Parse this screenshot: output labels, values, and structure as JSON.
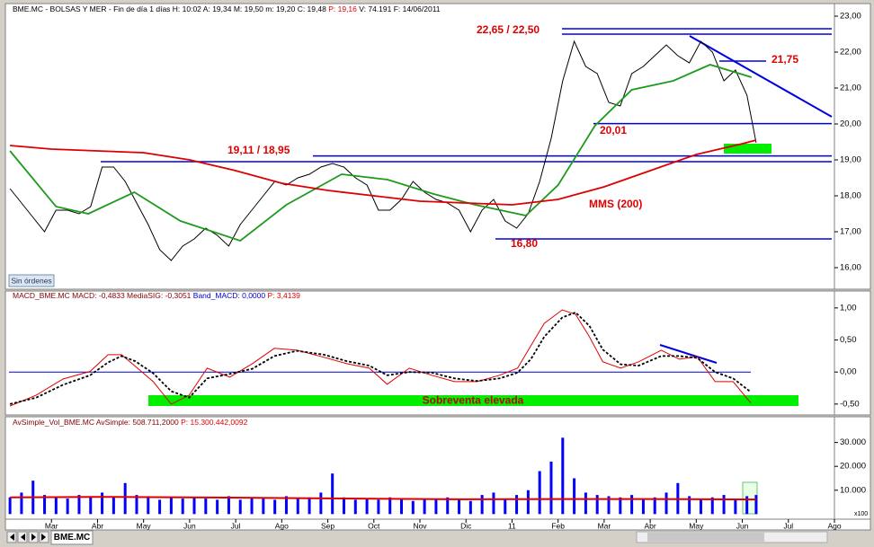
{
  "header": {
    "info": "BME.MC - BOLSAS Y MER - Fin de día 1 días  H: 10:02  A: 19,34  M: 19,50  m: 19,20  C: 19,48",
    "price_p": "P: 19,16",
    "volume_date": "V: 74.191  F: 14/06/2011"
  },
  "button": "Sin órdenes",
  "tab": "BME.MC",
  "chart_data": [
    {
      "type": "line",
      "xlim": [
        0,
        18
      ],
      "ylim": [
        15.4,
        23.1
      ],
      "yticks": [
        {
          "value": 16,
          "label": "16,00"
        },
        {
          "value": 17,
          "label": "17,00"
        },
        {
          "value": 18,
          "label": "18,00"
        },
        {
          "value": 19,
          "label": "19,00"
        },
        {
          "value": 20,
          "label": "20,00"
        },
        {
          "value": 21,
          "label": "21,00"
        },
        {
          "value": 22,
          "label": "22,00"
        },
        {
          "value": 23,
          "label": "23,00"
        }
      ],
      "series": [
        {
          "color": "#000000",
          "x": [
            0.1,
            0.35,
            0.6,
            0.85,
            1.1,
            1.35,
            1.6,
            1.85,
            2.1,
            2.35,
            2.6,
            2.85,
            3.1,
            3.35,
            3.6,
            3.85,
            4.1,
            4.35,
            4.6,
            4.85,
            5.1,
            5.35,
            5.6,
            5.85,
            6.1,
            6.35,
            6.6,
            6.85,
            7.1,
            7.35,
            7.6,
            7.85,
            8.1,
            8.35,
            8.6,
            8.85,
            9.1,
            9.35,
            9.6,
            9.85,
            10.1,
            10.35,
            10.6,
            10.85,
            11.1,
            11.35,
            11.6,
            11.85,
            12.1,
            12.35,
            12.6,
            12.85,
            13.1,
            13.35,
            13.6,
            13.85,
            14.1,
            14.35,
            14.6,
            14.85,
            15.1,
            15.35,
            15.6,
            15.85,
            16.1,
            16.3
          ],
          "values": [
            18.2,
            17.8,
            17.4,
            17.0,
            17.6,
            17.6,
            17.5,
            17.7,
            18.8,
            18.8,
            18.4,
            17.8,
            17.2,
            16.5,
            16.2,
            16.6,
            16.8,
            17.1,
            16.9,
            16.6,
            17.2,
            17.6,
            18.0,
            18.4,
            18.3,
            18.5,
            18.6,
            18.8,
            18.9,
            18.8,
            18.5,
            18.3,
            17.6,
            17.6,
            17.9,
            18.4,
            18.1,
            17.9,
            17.8,
            17.6,
            17.0,
            17.6,
            17.9,
            17.3,
            17.1,
            17.5,
            18.4,
            19.6,
            21.2,
            22.3,
            21.6,
            21.4,
            20.6,
            20.5,
            21.4,
            21.6,
            21.9,
            22.2,
            21.9,
            21.7,
            22.3,
            22.0,
            21.2,
            21.5,
            20.8,
            19.48
          ]
        },
        {
          "color": "#1f9a1f",
          "x": [
            0.1,
            1.1,
            1.8,
            2.8,
            3.8,
            5.1,
            6.1,
            7.3,
            8.3,
            9.3,
            10.2,
            11.3,
            12,
            12.8,
            13.6,
            14.5,
            15.3,
            16.2
          ],
          "values": [
            19.25,
            17.7,
            17.5,
            18.1,
            17.3,
            16.75,
            17.75,
            18.6,
            18.45,
            18.05,
            17.75,
            17.45,
            18.3,
            19.95,
            20.95,
            21.2,
            21.65,
            21.3
          ]
        },
        {
          "color": "#dd0000",
          "x": [
            0.1,
            1,
            2,
            3,
            4,
            5,
            6,
            7,
            8,
            9,
            10,
            11,
            12,
            13,
            14,
            15,
            16,
            16.3
          ],
          "values": [
            19.4,
            19.3,
            19.25,
            19.2,
            19.0,
            18.7,
            18.35,
            18.15,
            18.0,
            17.85,
            17.8,
            17.75,
            17.9,
            18.25,
            18.7,
            19.15,
            19.45,
            19.55
          ]
        }
      ],
      "levels": [
        22.65,
        22.5,
        20.01,
        19.11,
        18.95,
        16.8,
        21.75
      ],
      "annotations": [
        "22,65 / 22,50",
        "21,75",
        "20,01",
        "19,11 / 18,95",
        "16,80",
        "MMS (200)"
      ]
    },
    {
      "type": "line",
      "header": [
        "MACD_BME.MC  MACD: -0,4833  MediaSIG: -0,3051",
        "Band_MACD: 0,0000",
        "P: 3,4139"
      ],
      "xlim": [
        0,
        18
      ],
      "ylim": [
        -0.67,
        1.25
      ],
      "yticks": [
        {
          "value": 1,
          "label": "1,00"
        },
        {
          "value": 0.5,
          "label": "0,50"
        },
        {
          "value": 0,
          "label": "0,00"
        },
        {
          "value": -0.5,
          "label": "-0,50"
        }
      ],
      "zero_line": 0,
      "band_label": "Sobreventa elevada",
      "series": [
        {
          "color": "#e00000",
          "x": [
            0.1,
            0.67,
            1.25,
            1.84,
            2.23,
            2.52,
            2.82,
            3.21,
            3.6,
            3.99,
            4.38,
            4.87,
            5.36,
            5.84,
            6.33,
            6.92,
            7.41,
            7.9,
            8.29,
            8.77,
            9.26,
            9.75,
            10.24,
            10.73,
            11.12,
            11.41,
            11.7,
            12.09,
            12.38,
            12.68,
            12.97,
            13.36,
            13.75,
            14.24,
            14.63,
            15.02,
            15.41,
            15.8,
            16.18
          ],
          "values": [
            -0.53,
            -0.36,
            -0.11,
            0.01,
            0.27,
            0.27,
            0.09,
            -0.15,
            -0.5,
            -0.36,
            0.06,
            -0.08,
            0.13,
            0.37,
            0.34,
            0.23,
            0.13,
            0.06,
            -0.19,
            0.06,
            -0.05,
            -0.15,
            -0.15,
            -0.05,
            0.06,
            0.41,
            0.76,
            0.97,
            0.9,
            0.55,
            0.16,
            0.06,
            0.16,
            0.34,
            0.2,
            0.24,
            -0.15,
            -0.15,
            -0.48
          ]
        },
        {
          "color": "#000000",
          "dashed": true,
          "x": [
            0.1,
            0.67,
            1.25,
            1.84,
            2.23,
            2.52,
            2.82,
            3.21,
            3.6,
            3.99,
            4.38,
            4.87,
            5.36,
            5.84,
            6.33,
            6.92,
            7.41,
            7.9,
            8.29,
            8.77,
            9.26,
            9.75,
            10.24,
            10.73,
            11.12,
            11.41,
            11.7,
            12.09,
            12.38,
            12.68,
            12.97,
            13.36,
            13.75,
            14.24,
            14.63,
            15.02,
            15.41,
            15.8,
            16.18
          ],
          "values": [
            -0.5,
            -0.4,
            -0.2,
            -0.05,
            0.15,
            0.25,
            0.17,
            -0.02,
            -0.3,
            -0.4,
            -0.1,
            -0.03,
            0.05,
            0.25,
            0.33,
            0.27,
            0.17,
            0.1,
            -0.05,
            0,
            -0.01,
            -0.1,
            -0.14,
            -0.1,
            -0.01,
            0.2,
            0.55,
            0.85,
            0.93,
            0.72,
            0.35,
            0.12,
            0.1,
            0.25,
            0.25,
            0.22,
            0,
            -0.1,
            -0.31
          ]
        }
      ]
    },
    {
      "type": "bar",
      "header": [
        "AvSimple_Vol_BME.MC  AvSimple: 508.711,2000",
        "P: 15.300.442,0092"
      ],
      "unit": "x100",
      "xlim": [
        0,
        18
      ],
      "xticks": [
        {
          "value": 1,
          "label": "Mar"
        },
        {
          "value": 2,
          "label": "Abr"
        },
        {
          "value": 3,
          "label": "May"
        },
        {
          "value": 4,
          "label": "Jun"
        },
        {
          "value": 5,
          "label": "Jul"
        },
        {
          "value": 6,
          "label": "Ago"
        },
        {
          "value": 7,
          "label": "Sep"
        },
        {
          "value": 8,
          "label": "Oct"
        },
        {
          "value": 9,
          "label": "Nov"
        },
        {
          "value": 10,
          "label": "Dic"
        },
        11,
        {
          "value": 12,
          "label": "Feb"
        },
        {
          "value": 13,
          "label": "Mar"
        },
        {
          "value": 14,
          "label": "Abr"
        },
        {
          "value": 15,
          "label": "May"
        },
        {
          "value": 16,
          "label": "Jun"
        },
        {
          "value": 17,
          "label": "Jul"
        },
        {
          "value": 18,
          "label": "Ago"
        }
      ],
      "ylim": [
        -1000,
        40400
      ],
      "yticks": [
        {
          "value": 10000,
          "label": "10.000"
        },
        {
          "value": 20000,
          "label": "20.000"
        },
        {
          "value": 30000,
          "label": "30.000"
        }
      ],
      "color": "#0000ff",
      "x": [
        0.1,
        0.35,
        0.6,
        0.85,
        1.1,
        1.35,
        1.6,
        1.85,
        2.1,
        2.35,
        2.6,
        2.85,
        3.1,
        3.35,
        3.6,
        3.85,
        4.1,
        4.35,
        4.6,
        4.85,
        5.1,
        5.35,
        5.6,
        5.85,
        6.1,
        6.35,
        6.6,
        6.85,
        7.1,
        7.35,
        7.6,
        7.85,
        8.1,
        8.35,
        8.6,
        8.85,
        9.1,
        9.35,
        9.6,
        9.85,
        10.1,
        10.35,
        10.6,
        10.85,
        11.1,
        11.35,
        11.6,
        11.85,
        12.1,
        12.35,
        12.6,
        12.85,
        13.1,
        13.35,
        13.6,
        13.85,
        14.1,
        14.35,
        14.6,
        14.85,
        15.1,
        15.35,
        15.6,
        15.85,
        16.1,
        16.3
      ],
      "values": [
        7000,
        9000,
        14000,
        8000,
        7000,
        6500,
        8000,
        7500,
        9000,
        7000,
        13000,
        8000,
        7500,
        6000,
        7000,
        6500,
        7000,
        6500,
        6000,
        7500,
        6000,
        7000,
        6500,
        6000,
        7500,
        6500,
        7000,
        9000,
        17000,
        7000,
        6000,
        6500,
        6000,
        7000,
        6500,
        5500,
        6000,
        6500,
        7000,
        6000,
        5500,
        8000,
        9000,
        6500,
        8000,
        10000,
        18000,
        22000,
        32000,
        15000,
        9000,
        8000,
        7500,
        7000,
        8000,
        6500,
        7000,
        9000,
        13000,
        7500,
        6500,
        7000,
        8000,
        6500,
        7500,
        8000
      ],
      "average": {
        "color": "#dd0000",
        "x": [
          0.1,
          2,
          4,
          6,
          8,
          10,
          12,
          14,
          16.3
        ],
        "values": [
          7000,
          7200,
          7000,
          6700,
          6400,
          6200,
          6300,
          6300,
          6100
        ]
      }
    }
  ]
}
